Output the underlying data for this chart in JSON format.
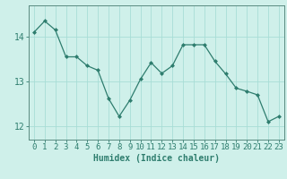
{
  "x": [
    0,
    1,
    2,
    3,
    4,
    5,
    6,
    7,
    8,
    9,
    10,
    11,
    12,
    13,
    14,
    15,
    16,
    17,
    18,
    19,
    20,
    21,
    22,
    23
  ],
  "y": [
    14.1,
    14.35,
    14.15,
    13.55,
    13.55,
    13.35,
    13.25,
    12.62,
    12.22,
    12.58,
    13.05,
    13.42,
    13.18,
    13.35,
    13.82,
    13.82,
    13.82,
    13.45,
    13.17,
    12.85,
    12.78,
    12.7,
    12.1,
    12.22
  ],
  "line_color": "#2e7d6e",
  "marker": "D",
  "marker_size": 2.0,
  "bg_color": "#cff0ea",
  "grid_color": "#a8ddd6",
  "axis_color": "#5a8a80",
  "xlabel": "Humidex (Indice chaleur)",
  "xlabel_fontsize": 7,
  "yticks": [
    12,
    13,
    14
  ],
  "ylim": [
    11.7,
    14.7
  ],
  "xlim": [
    -0.5,
    23.5
  ],
  "tick_fontsize": 6.5
}
